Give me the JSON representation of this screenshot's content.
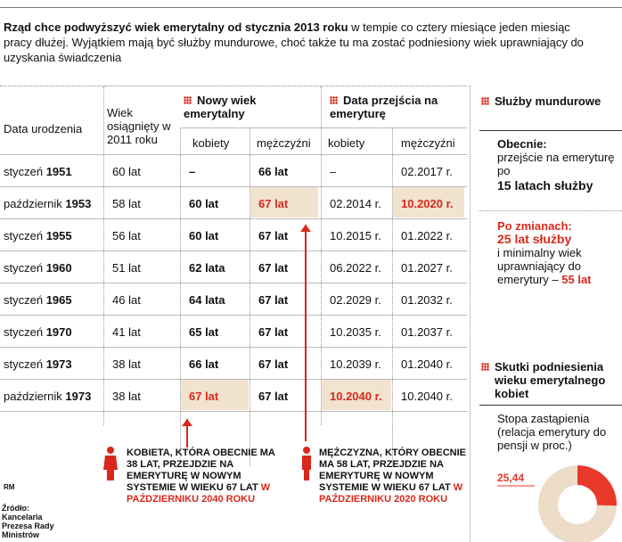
{
  "header": {
    "title_bold": "Rząd chce podwyższyć wiek emerytalny od stycznia 2013 roku",
    "title_rest": " w tempie co cztery miesiące jeden miesiąc pracy dłużej. Wyjątkiem mają być służby mundurowe, choć także tu ma zostać podniesiony wiek uprawniający do uzyskania świadczenia"
  },
  "table": {
    "col_date": "Data urodzenia",
    "col_age": "Wiek osiągnięty w 2011 roku",
    "group_new_age": "Nowy wiek emerytalny",
    "group_date": "Data przejścia na emeryturę",
    "women": "kobiety",
    "men": "mężczyźni",
    "rows": [
      {
        "month": "styczeń",
        "year": "1951",
        "cells": [
          "60 lat",
          "–",
          "66 lat",
          "–",
          "02.2017 r."
        ]
      },
      {
        "month": "październik",
        "year": "1953",
        "cells": [
          "58 lat",
          "60 lat",
          "67 lat",
          "02.2014 r.",
          "10.2020 r."
        ]
      },
      {
        "month": "styczeń",
        "year": "1955",
        "cells": [
          "56 lat",
          "60 lat",
          "67 lat",
          "10.2015 r.",
          "01.2022 r."
        ]
      },
      {
        "month": "styczeń",
        "year": "1960",
        "cells": [
          "51 lat",
          "62 lata",
          "67 lat",
          "06.2022 r.",
          "01.2027 r."
        ]
      },
      {
        "month": "styczeń",
        "year": "1965",
        "cells": [
          "46 lat",
          "64 lata",
          "67 lat",
          "02.2029 r.",
          "01.2032 r."
        ]
      },
      {
        "month": "styczeń",
        "year": "1970",
        "cells": [
          "41 lat",
          "65 lat",
          "67 lat",
          "10.2035 r.",
          "01.2037 r."
        ]
      },
      {
        "month": "styczeń",
        "year": "1973",
        "cells": [
          "38 lat",
          "66 lat",
          "67 lat",
          "10.2039 r.",
          "01.2040 r."
        ]
      },
      {
        "month": "październik",
        "year": "1973",
        "cells": [
          "38 lat",
          "67 lat",
          "67 lat",
          "10.2040 r.",
          "10.2040 r."
        ]
      }
    ]
  },
  "notes": [
    {
      "text": "KOBIETA, KTÓRA OBECNIE MA 38 LAT, PRZEJDZIE NA EMERYTURĘ W NOWYM SYSTEMIE W WIEKU 67 LAT",
      "highlight": "W PAŹDZIERNIKU 2040 ROKU"
    },
    {
      "text": "MĘŻCZYZNA, KTÓRY OBECNIE MA 58 LAT, PRZEJDZIE NA EMERYTURĘ W NOWYM SYSTEMIE W WIEKU 67 LAT",
      "highlight": "W PAŹDZIERNIKU 2020 ROKU"
    }
  ],
  "footer": {
    "author": "RM",
    "source_label": "Źródło:",
    "source": "Kancelaria Prezesa Rady Ministrów"
  },
  "sidebar": {
    "title": "Służby mundurowe",
    "now_label": "Obecnie:",
    "now_text": "przejście na emeryturę po",
    "now_value": "15 latach służby",
    "after_label": "Po zmianach:",
    "after_value": "25 lat służby",
    "after_text": "i minimalny wiek uprawniający do emerytury –",
    "after_age": "55 lat",
    "effects_title": "Skutki podniesienia wieku emerytalnego kobiet",
    "effects_text": "Stopa zastąpienia (relacja emerytury do pensji w proc.)",
    "chart_data": {
      "type": "pie",
      "values": [
        25.44
      ],
      "value_labels": [
        "25,44"
      ],
      "color": "#e8392a"
    }
  }
}
